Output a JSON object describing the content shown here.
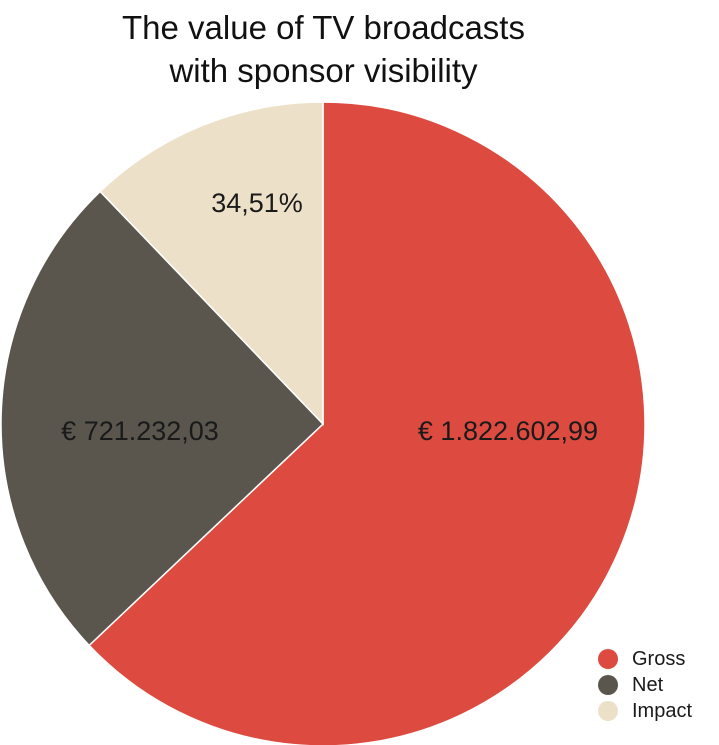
{
  "chart_data": {
    "type": "pie",
    "title_lines": [
      "The value of TV broadcasts",
      "with sponsor visibility"
    ],
    "slices": [
      {
        "name": "Gross",
        "value": 1822602.99,
        "label": "€ 1.822.602,99",
        "color": "#dd4b40"
      },
      {
        "name": "Net",
        "value": 721232.03,
        "label": "€ 721.232,03",
        "color": "#5a554d"
      },
      {
        "name": "Impact",
        "value": 34.51,
        "share": 0.1216,
        "label": "34,51%",
        "color": "#ece1c8"
      }
    ],
    "legend_position": "bottom-right",
    "legend": [
      "Gross",
      "Net",
      "Impact"
    ]
  }
}
